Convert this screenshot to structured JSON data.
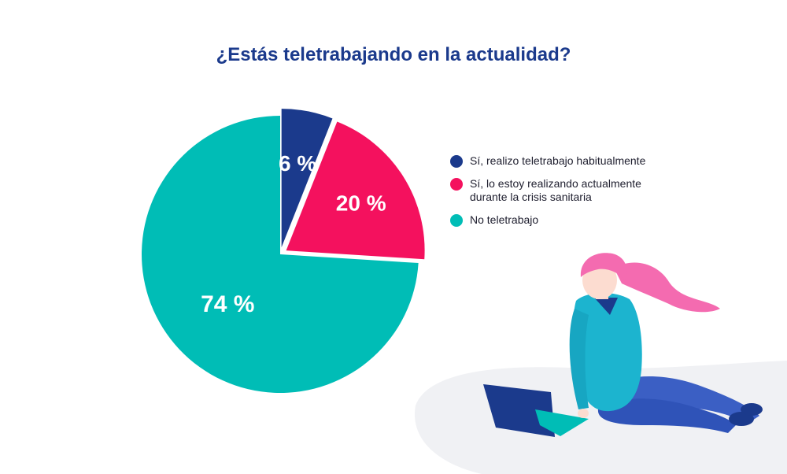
{
  "chart_data": {
    "type": "pie",
    "title": "¿Estás teletrabajando en la actualidad?",
    "categories": [
      "Sí, realizo teletrabajo habitualmente",
      "Sí, lo estoy realizando actualmente durante la crisis sanitaria",
      "No teletrabajo"
    ],
    "values": [
      6,
      20,
      74
    ],
    "value_labels": [
      "6 %",
      "20 %",
      "74 %"
    ],
    "colors": [
      "#1b3a8c",
      "#f4115e",
      "#00bdb6"
    ],
    "legend_position": "right",
    "exploded_slices": [
      0,
      1
    ]
  }
}
